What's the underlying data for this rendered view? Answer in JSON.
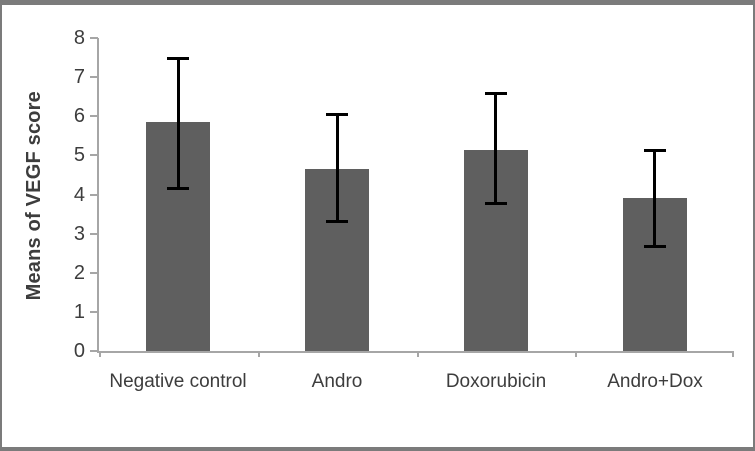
{
  "figure": {
    "background_color": "#ffffff",
    "frame_border_color": "#7b7b7b"
  },
  "chart_data": {
    "type": "bar",
    "ylabel": "Means of VEGF score",
    "xlabel": "",
    "categories": [
      "Negative control",
      "Andro",
      "Doxorubicin",
      "Andro+Dox"
    ],
    "values": [
      5.85,
      4.65,
      5.15,
      3.9
    ],
    "error_bars": {
      "upper": [
        7.5,
        6.05,
        6.6,
        5.15
      ],
      "lower": [
        4.15,
        3.3,
        3.75,
        2.65
      ]
    },
    "ylim": [
      0,
      8
    ],
    "yticks": [
      0,
      1,
      2,
      3,
      4,
      5,
      6,
      7,
      8
    ],
    "grid": false,
    "legend": "none",
    "bar_color": "#5f5f5f",
    "error_bar_color": "#000000",
    "axis_color": "#a6a6a6",
    "text_color": "#3d3d3d"
  }
}
